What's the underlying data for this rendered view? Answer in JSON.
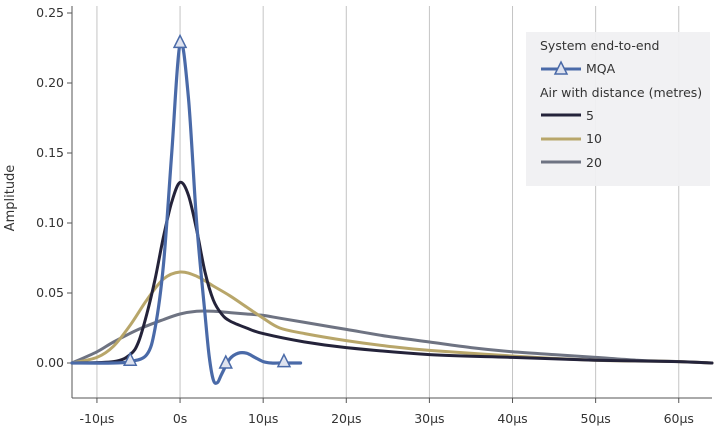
{
  "chart_data": {
    "type": "line",
    "title": "",
    "xlabel": "",
    "ylabel": "Amplitude",
    "xlim": [
      -13,
      64
    ],
    "ylim": [
      -0.025,
      0.255
    ],
    "x_ticks": [
      -10,
      0,
      10,
      20,
      30,
      40,
      50,
      60
    ],
    "x_tick_labels": [
      "-10µs",
      "0s",
      "10µs",
      "20µs",
      "30µs",
      "40µs",
      "50µs",
      "60µs"
    ],
    "y_ticks": [
      0.0,
      0.05,
      0.1,
      0.15,
      0.2,
      0.25
    ],
    "y_tick_labels": [
      "0.00",
      "0.05",
      "0.10",
      "0.15",
      "0.20",
      "0.25"
    ],
    "grid": "vertical",
    "legend": {
      "placement": "top-right",
      "group1_title": "System end-to-end",
      "group2_title": "Air with distance (metres)"
    },
    "series": [
      {
        "name": "MQA",
        "color": "#4a6aa8",
        "marker": "triangle",
        "x": [
          -13,
          -8,
          -6,
          -4,
          -3,
          -2,
          -1,
          0,
          1,
          2,
          3,
          3.5,
          4,
          4.5,
          5,
          6,
          7,
          8,
          9,
          10,
          11,
          12,
          13,
          14.5
        ],
        "y": [
          0,
          0,
          0.001,
          0.006,
          0.025,
          0.07,
          0.15,
          0.228,
          0.19,
          0.1,
          0.035,
          0.005,
          -0.012,
          -0.014,
          -0.008,
          0.003,
          0.007,
          0.007,
          0.004,
          0.001,
          0.0,
          0.0,
          0.0,
          0.0
        ],
        "marker_x": [
          -6,
          0,
          5.5,
          12.5
        ],
        "marker_y": [
          0.002,
          0.229,
          0.0,
          0.001
        ]
      },
      {
        "name": "5",
        "color": "#24233a",
        "x": [
          -13,
          -8,
          -6,
          -5,
          -4,
          -3,
          -2,
          -1,
          0,
          1,
          2,
          3,
          4,
          5,
          6,
          8,
          10,
          15,
          20,
          30,
          40,
          50,
          60,
          64
        ],
        "y": [
          0,
          0.001,
          0.006,
          0.015,
          0.035,
          0.06,
          0.09,
          0.115,
          0.129,
          0.12,
          0.095,
          0.065,
          0.045,
          0.035,
          0.03,
          0.025,
          0.021,
          0.015,
          0.011,
          0.006,
          0.004,
          0.002,
          0.001,
          0.0
        ]
      },
      {
        "name": "10",
        "color": "#b8a66a",
        "x": [
          -13,
          -10,
          -8,
          -6,
          -4,
          -2,
          0,
          2,
          4,
          6,
          8,
          10,
          12,
          15,
          20,
          25,
          30,
          40,
          50,
          60,
          64
        ],
        "y": [
          0,
          0.004,
          0.012,
          0.027,
          0.045,
          0.06,
          0.065,
          0.062,
          0.055,
          0.048,
          0.04,
          0.032,
          0.025,
          0.021,
          0.016,
          0.012,
          0.009,
          0.005,
          0.002,
          0.001,
          0.0
        ]
      },
      {
        "name": "20",
        "color": "#6e7382",
        "x": [
          -13,
          -10,
          -8,
          -5,
          -2,
          0,
          2,
          4,
          6,
          8,
          10,
          12,
          15,
          20,
          25,
          30,
          35,
          40,
          45,
          50,
          55,
          60,
          64
        ],
        "y": [
          0,
          0.008,
          0.015,
          0.024,
          0.031,
          0.035,
          0.037,
          0.037,
          0.036,
          0.035,
          0.034,
          0.032,
          0.029,
          0.024,
          0.019,
          0.015,
          0.011,
          0.008,
          0.006,
          0.004,
          0.002,
          0.001,
          0.0
        ]
      }
    ]
  }
}
